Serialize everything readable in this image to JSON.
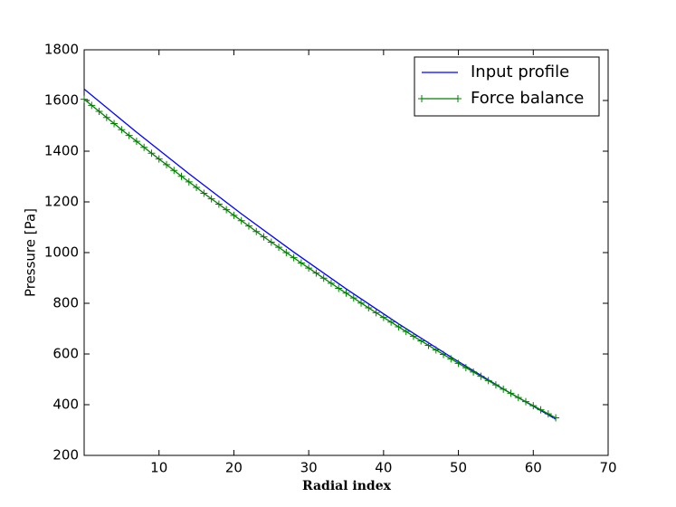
{
  "chart_data": {
    "type": "line",
    "x_label": "Radial index",
    "y_label": "Pressure [Pa]",
    "xlim": [
      0,
      70
    ],
    "xticks": [
      10,
      20,
      30,
      40,
      50,
      60,
      70
    ],
    "ylim": [
      200,
      1800
    ],
    "yticks": [
      200,
      400,
      600,
      800,
      1000,
      1200,
      1400,
      1600,
      1800
    ],
    "legend": "upper right",
    "series": [
      {
        "name": "Input profile",
        "color": "#0000ff",
        "marker": null,
        "x": [
          0,
          7,
          14,
          21,
          28,
          35,
          42,
          49,
          56,
          63
        ],
        "values": [
          1645,
          1475,
          1311,
          1153,
          1002,
          857,
          719,
          588,
          462,
          343
        ]
      },
      {
        "name": "Force balance",
        "color": "#008000",
        "marker": "+",
        "x": [
          0,
          1,
          2,
          3,
          4,
          5,
          6,
          7,
          8,
          9,
          10,
          11,
          12,
          13,
          14,
          15,
          16,
          17,
          18,
          19,
          20,
          21,
          22,
          23,
          24,
          25,
          26,
          27,
          28,
          29,
          30,
          31,
          32,
          33,
          34,
          35,
          36,
          37,
          38,
          39,
          40,
          41,
          42,
          43,
          44,
          45,
          46,
          47,
          48,
          49,
          50,
          51,
          52,
          53,
          54,
          55,
          56,
          57,
          58,
          59,
          60,
          61,
          62,
          63
        ],
        "values": [
          1605,
          1581,
          1557,
          1533,
          1509,
          1485,
          1462,
          1439,
          1415,
          1392,
          1369,
          1347,
          1324,
          1301,
          1279,
          1257,
          1234,
          1212,
          1191,
          1169,
          1147,
          1126,
          1105,
          1083,
          1062,
          1041,
          1021,
          1000,
          980,
          959,
          939,
          919,
          899,
          879,
          859,
          840,
          821,
          801,
          782,
          763,
          744,
          726,
          707,
          689,
          670,
          652,
          634,
          616,
          598,
          581,
          563,
          546,
          529,
          512,
          495,
          478,
          461,
          445,
          428,
          412,
          396,
          380,
          364,
          348
        ]
      }
    ]
  }
}
